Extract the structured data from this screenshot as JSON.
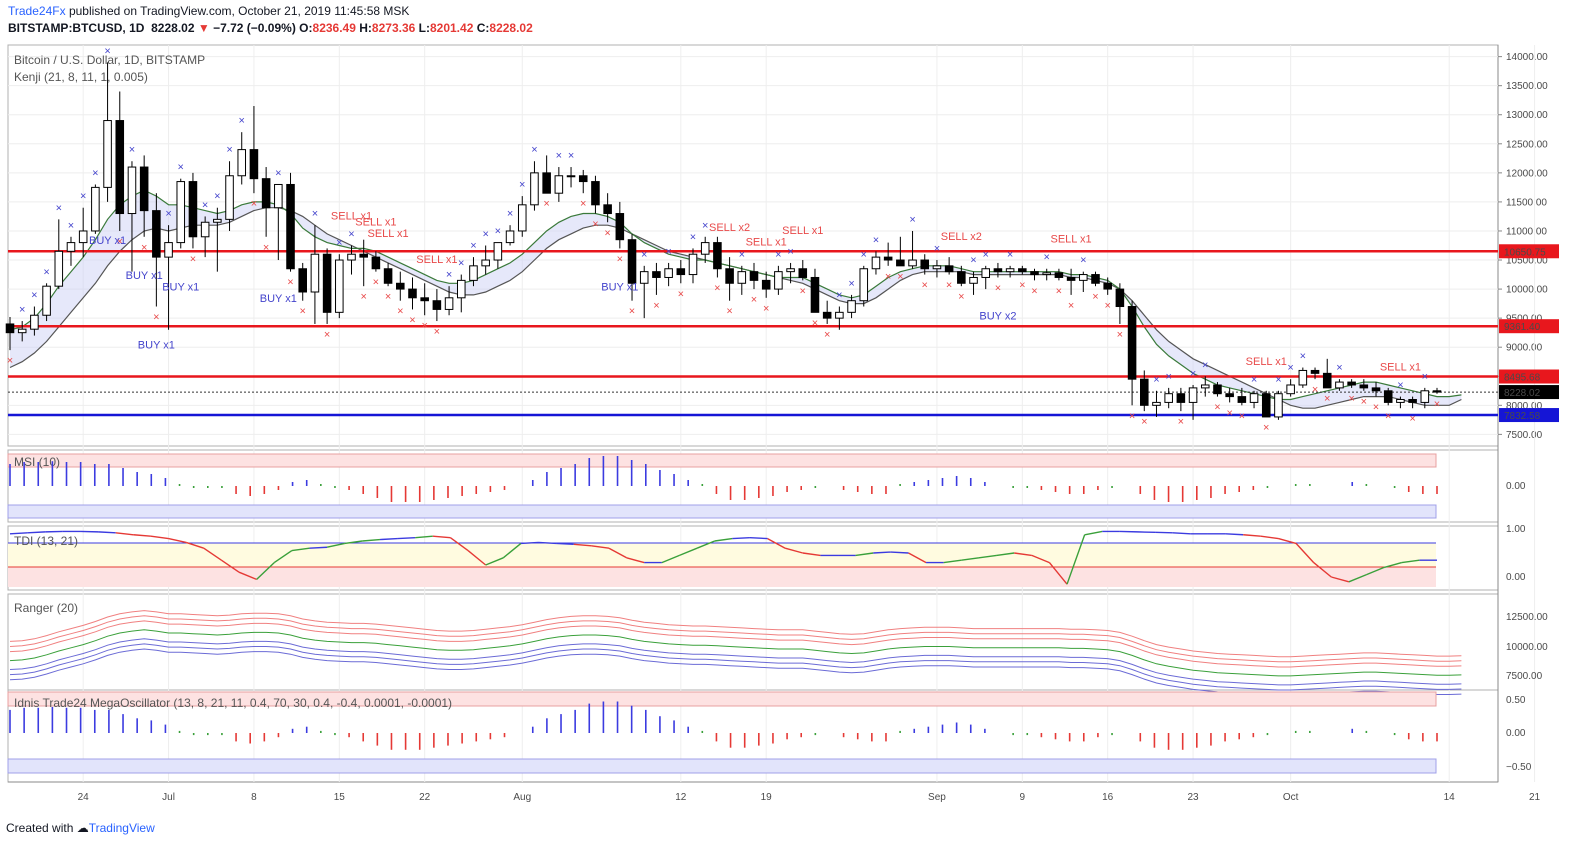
{
  "header": {
    "brand": "Trade24Fx",
    "published": "published on TradingView.com, October 21, 2019 11:45:58 MSK",
    "symbol": "BITSTAMP:BTCUSD, 1D",
    "price": "8228.02",
    "change_arrow": "▼",
    "change": "−7.72 (−0.09%)",
    "o_label": "O:",
    "o_value": "8236.49",
    "h_label": "H:",
    "h_value": "8273.36",
    "l_label": "L:",
    "l_value": "8201.42",
    "c_label": "C:",
    "c_value": "8228.02"
  },
  "footer": {
    "created_with": "Created with",
    "brand": "TradingView"
  },
  "colors": {
    "up": "#ffffff",
    "down": "#000000",
    "hline_red": "#e8171d",
    "hline_blue": "#1515d6",
    "sell": "#e84a4a",
    "buy": "#4444cc",
    "grid": "#eeeeee"
  },
  "chart_data": {
    "type": "candlestick",
    "title": "Bitcoin / U.S. Dollar, 1D, BITSTAMP",
    "indicator": "Kenji (21, 8, 11, 1, 0.005)",
    "ylim": [
      7300,
      14200
    ],
    "y_ticks": [
      "14000.00",
      "13500.00",
      "13000.00",
      "12500.00",
      "12000.00",
      "11500.00",
      "11000.00",
      "10500.00",
      "10000.00",
      "9500.00",
      "9000.00",
      "8500.00",
      "8000.00",
      "7500.00"
    ],
    "x_ticks": [
      "24",
      "Jul",
      "8",
      "15",
      "22",
      "Aug",
      "12",
      "19",
      "Sep",
      "9",
      "16",
      "23",
      "Oct",
      "14",
      "21"
    ],
    "x_tick_days": [
      6,
      13,
      20,
      27,
      34,
      42,
      55,
      62,
      76,
      83,
      90,
      97,
      105,
      118,
      125
    ],
    "horizontal_levels": [
      {
        "value": 10650.75,
        "label": "10650.75",
        "color": "red"
      },
      {
        "value": 9361.4,
        "label": "9361.40",
        "color": "red"
      },
      {
        "value": 8495.68,
        "label": "8495.68",
        "color": "red"
      },
      {
        "value": 7832.58,
        "label": "7832.58",
        "color": "blue"
      }
    ],
    "last_price": {
      "value": 8228.02,
      "label": "8228.02"
    },
    "candles": [
      [
        9400,
        9520,
        8950,
        9250
      ],
      [
        9250,
        9450,
        9100,
        9310
      ],
      [
        9310,
        9700,
        9200,
        9550
      ],
      [
        9550,
        10100,
        9450,
        10050
      ],
      [
        10050,
        11200,
        10000,
        10650
      ],
      [
        10650,
        10900,
        10400,
        10800
      ],
      [
        10800,
        11400,
        10550,
        11000
      ],
      [
        11000,
        11800,
        10950,
        11750
      ],
      [
        11750,
        13900,
        11500,
        12900
      ],
      [
        12900,
        13400,
        11000,
        11300
      ],
      [
        11300,
        12200,
        10300,
        12100
      ],
      [
        12100,
        12300,
        10900,
        11350
      ],
      [
        11350,
        11650,
        9700,
        10550
      ],
      [
        10550,
        11100,
        9300,
        10800
      ],
      [
        10800,
        11900,
        10700,
        11850
      ],
      [
        11850,
        12000,
        10700,
        10900
      ],
      [
        10900,
        11250,
        10550,
        11150
      ],
      [
        11150,
        11400,
        10300,
        11200
      ],
      [
        11200,
        12200,
        11000,
        11950
      ],
      [
        11950,
        12700,
        11800,
        12400
      ],
      [
        12400,
        13150,
        11650,
        11900
      ],
      [
        11900,
        12100,
        10900,
        11400
      ],
      [
        11400,
        11800,
        10500,
        11800
      ],
      [
        11800,
        12000,
        10300,
        10350
      ],
      [
        10350,
        10450,
        9800,
        9950
      ],
      [
        9950,
        11100,
        9400,
        10600
      ],
      [
        10600,
        10700,
        9400,
        9600
      ],
      [
        9600,
        10600,
        9500,
        10500
      ],
      [
        10500,
        10750,
        10250,
        10600
      ],
      [
        10600,
        10850,
        10050,
        10550
      ],
      [
        10550,
        10650,
        10300,
        10350
      ],
      [
        10350,
        10450,
        10050,
        10100
      ],
      [
        10100,
        10300,
        9800,
        10000
      ],
      [
        10000,
        10200,
        9650,
        9850
      ],
      [
        9850,
        10100,
        9550,
        9800
      ],
      [
        9800,
        10000,
        9450,
        9650
      ],
      [
        9650,
        10050,
        9550,
        9850
      ],
      [
        9850,
        10250,
        9600,
        10150
      ],
      [
        10150,
        10550,
        10050,
        10400
      ],
      [
        10400,
        10750,
        10250,
        10500
      ],
      [
        10500,
        10800,
        10350,
        10800
      ],
      [
        10800,
        11100,
        10750,
        11000
      ],
      [
        11000,
        11600,
        10900,
        11450
      ],
      [
        11450,
        12200,
        11350,
        12000
      ],
      [
        12000,
        12300,
        11650,
        11650
      ],
      [
        11650,
        12100,
        11500,
        11950
      ],
      [
        11950,
        12100,
        11750,
        11950
      ],
      [
        11950,
        12050,
        11650,
        11850
      ],
      [
        11850,
        11950,
        11300,
        11450
      ],
      [
        11450,
        11650,
        11150,
        11300
      ],
      [
        11300,
        11500,
        10700,
        10850
      ],
      [
        10850,
        10950,
        9800,
        10100
      ],
      [
        10100,
        10400,
        9500,
        10300
      ],
      [
        10300,
        10450,
        9900,
        10200
      ],
      [
        10200,
        10450,
        10050,
        10350
      ],
      [
        10350,
        10500,
        10100,
        10250
      ],
      [
        10250,
        10700,
        10100,
        10600
      ],
      [
        10600,
        10900,
        10450,
        10800
      ],
      [
        10800,
        10900,
        10200,
        10350
      ],
      [
        10350,
        10550,
        9800,
        10100
      ],
      [
        10100,
        10400,
        9900,
        10300
      ],
      [
        10300,
        10450,
        10000,
        10150
      ],
      [
        10150,
        10300,
        9850,
        10000
      ],
      [
        10000,
        10400,
        9900,
        10300
      ],
      [
        10300,
        10450,
        10100,
        10350
      ],
      [
        10350,
        10500,
        10150,
        10200
      ],
      [
        10200,
        10350,
        9600,
        9600
      ],
      [
        9600,
        9800,
        9400,
        9500
      ],
      [
        9500,
        9700,
        9300,
        9600
      ],
      [
        9600,
        9900,
        9500,
        9800
      ],
      [
        9800,
        10400,
        9700,
        10350
      ],
      [
        10350,
        10650,
        10250,
        10550
      ],
      [
        10550,
        10800,
        10400,
        10500
      ],
      [
        10500,
        10900,
        10400,
        10400
      ],
      [
        10400,
        11000,
        10350,
        10500
      ],
      [
        10500,
        10600,
        10250,
        10350
      ],
      [
        10350,
        10500,
        10200,
        10400
      ],
      [
        10400,
        10550,
        10250,
        10300
      ],
      [
        10300,
        10400,
        10050,
        10100
      ],
      [
        10100,
        10300,
        9900,
        10200
      ],
      [
        10200,
        10400,
        10000,
        10350
      ],
      [
        10350,
        10450,
        10200,
        10300
      ],
      [
        10300,
        10400,
        10200,
        10350
      ],
      [
        10350,
        10400,
        10250,
        10300
      ],
      [
        10300,
        10350,
        10150,
        10250
      ],
      [
        10250,
        10350,
        10150,
        10280
      ],
      [
        10280,
        10350,
        10150,
        10200
      ],
      [
        10200,
        10350,
        9900,
        10150
      ],
      [
        10150,
        10300,
        9950,
        10250
      ],
      [
        10250,
        10300,
        10050,
        10100
      ],
      [
        10100,
        10200,
        9900,
        10000
      ],
      [
        10000,
        10100,
        9400,
        9700
      ],
      [
        9700,
        9800,
        8000,
        8450
      ],
      [
        8450,
        8600,
        7900,
        8000
      ],
      [
        8000,
        8250,
        7800,
        8050
      ],
      [
        8050,
        8300,
        7950,
        8200
      ],
      [
        8200,
        8300,
        7900,
        8050
      ],
      [
        8050,
        8350,
        7750,
        8300
      ],
      [
        8300,
        8500,
        8150,
        8350
      ],
      [
        8350,
        8400,
        8150,
        8200
      ],
      [
        8200,
        8300,
        8050,
        8150
      ],
      [
        8150,
        8300,
        8000,
        8050
      ],
      [
        8050,
        8250,
        7950,
        8200
      ],
      [
        8200,
        8250,
        7800,
        7800
      ],
      [
        7800,
        8250,
        7750,
        8200
      ],
      [
        8200,
        8450,
        8150,
        8350
      ],
      [
        8350,
        8650,
        8300,
        8600
      ],
      [
        8600,
        8650,
        8450,
        8550
      ],
      [
        8550,
        8800,
        8300,
        8300
      ],
      [
        8300,
        8450,
        8250,
        8400
      ],
      [
        8400,
        8450,
        8300,
        8350
      ],
      [
        8350,
        8450,
        8250,
        8300
      ],
      [
        8300,
        8400,
        8150,
        8250
      ],
      [
        8250,
        8300,
        8000,
        8050
      ],
      [
        8050,
        8150,
        7950,
        8100
      ],
      [
        8100,
        8150,
        7950,
        8050
      ],
      [
        8050,
        8300,
        7950,
        8250
      ],
      [
        8250,
        8300,
        8200,
        8228
      ]
    ],
    "band_fast": [
      9300,
      9350,
      9500,
      9750,
      10050,
      10300,
      10550,
      10850,
      11200,
      11450,
      11600,
      11700,
      11600,
      11450,
      11450,
      11400,
      11350,
      11300,
      11350,
      11450,
      11500,
      11500,
      11450,
      11300,
      11050,
      10900,
      10800,
      10750,
      10700,
      10700,
      10650,
      10550,
      10450,
      10350,
      10250,
      10150,
      10100,
      10100,
      10150,
      10250,
      10350,
      10450,
      10600,
      10800,
      11000,
      11150,
      11250,
      11300,
      11300,
      11250,
      11150,
      10950,
      10800,
      10700,
      10600,
      10550,
      10500,
      10500,
      10450,
      10400,
      10350,
      10300,
      10250,
      10200,
      10200,
      10200,
      10100,
      10000,
      9900,
      9850,
      9900,
      10050,
      10200,
      10300,
      10350,
      10400,
      10400,
      10400,
      10350,
      10300,
      10300,
      10300,
      10300,
      10300,
      10300,
      10300,
      10300,
      10250,
      10250,
      10200,
      10150,
      10000,
      9700,
      9350,
      9050,
      8850,
      8700,
      8550,
      8450,
      8350,
      8300,
      8250,
      8200,
      8150,
      8100,
      8100,
      8150,
      8200,
      8250,
      8300,
      8350,
      8400,
      8400,
      8350,
      8300,
      8250,
      8200,
      8150,
      8150,
      8180
    ],
    "band_slow": [
      8650,
      8750,
      8900,
      9100,
      9350,
      9600,
      9850,
      10100,
      10400,
      10650,
      10850,
      11000,
      11050,
      11000,
      11050,
      11100,
      11100,
      11100,
      11150,
      11250,
      11350,
      11400,
      11400,
      11350,
      11250,
      11100,
      10950,
      10850,
      10750,
      10650,
      10550,
      10450,
      10350,
      10250,
      10150,
      10050,
      9950,
      9900,
      9900,
      9950,
      10050,
      10150,
      10300,
      10500,
      10700,
      10850,
      10950,
      11050,
      11100,
      11100,
      11050,
      10950,
      10850,
      10750,
      10650,
      10600,
      10550,
      10500,
      10450,
      10400,
      10350,
      10300,
      10250,
      10200,
      10150,
      10100,
      10000,
      9900,
      9800,
      9750,
      9750,
      9850,
      10000,
      10150,
      10250,
      10300,
      10300,
      10300,
      10300,
      10250,
      10250,
      10250,
      10250,
      10250,
      10250,
      10250,
      10250,
      10200,
      10200,
      10150,
      10100,
      10000,
      9800,
      9550,
      9300,
      9100,
      8950,
      8800,
      8700,
      8600,
      8500,
      8400,
      8300,
      8200,
      8100,
      8000,
      7950,
      7950,
      8000,
      8050,
      8100,
      8150,
      8150,
      8150,
      8100,
      8050,
      8000,
      8000,
      8000,
      8100
    ],
    "signals_text": [
      {
        "day": 14,
        "label": "BUY x1",
        "type": "buy"
      },
      {
        "day": 19,
        "label": "BUY x1",
        "type": "buy"
      },
      {
        "day": 20,
        "label": "BUY x1",
        "type": "buy"
      },
      {
        "day": 24,
        "label": "BUY x1",
        "type": "buy"
      },
      {
        "day": 38,
        "label": "BUY x1",
        "type": "buy"
      },
      {
        "day": 48,
        "label": "SELL x1",
        "type": "sell"
      },
      {
        "day": 51,
        "label": "SELL x1",
        "type": "sell"
      },
      {
        "day": 53,
        "label": "SELL x1",
        "type": "sell"
      },
      {
        "day": 60,
        "label": "SELL x1",
        "type": "sell"
      },
      {
        "day": 84,
        "label": "BUY x1",
        "type": "buy"
      },
      {
        "day": 100,
        "label": "SELL x2",
        "type": "sell"
      },
      {
        "day": 105,
        "label": "SELL x1",
        "type": "sell"
      },
      {
        "day": 110,
        "label": "SELL x1",
        "type": "sell"
      },
      {
        "day": 137,
        "label": "BUY x2",
        "type": "buy"
      },
      {
        "day": 132,
        "label": "SELL x2",
        "type": "sell"
      },
      {
        "day": 148,
        "label": "SELL x1",
        "type": "sell"
      },
      {
        "day": 174,
        "label": "SELL x1",
        "type": "sell"
      },
      {
        "day": 193,
        "label": "SELL x1",
        "type": "sell"
      }
    ],
    "panes": [
      {
        "name": "MSI (10)",
        "y_ticks": [
          "0.00"
        ]
      },
      {
        "name": "TDI (13, 21)",
        "y_ticks": [
          "1.00",
          "0.00"
        ]
      },
      {
        "name": "Ranger (20)",
        "y_ticks": [
          "12500.00",
          "10000.00",
          "7500.00"
        ]
      },
      {
        "name": "Idnis Trade24 MegaOscillator (13, 8, 21, 11, 0.4, 70, 30, 0.4, -0.4, 0.0001, -0.0001)",
        "y_ticks": [
          "0.50",
          "0.00",
          "−0.50"
        ]
      }
    ],
    "msi_values": [
      0.55,
      0.6,
      0.6,
      0.62,
      0.6,
      0.6,
      0.55,
      0.55,
      0.45,
      0.35,
      0.3,
      0.2,
      0.05,
      -0.05,
      -0.05,
      -0.05,
      -0.2,
      -0.25,
      -0.2,
      -0.1,
      0.1,
      0.15,
      0.05,
      -0.05,
      -0.1,
      -0.2,
      -0.3,
      -0.4,
      -0.4,
      -0.4,
      -0.35,
      -0.3,
      -0.25,
      -0.2,
      -0.15,
      -0.1,
      0.0,
      0.15,
      0.35,
      0.45,
      0.55,
      0.7,
      0.75,
      0.75,
      0.65,
      0.55,
      0.4,
      0.3,
      0.15,
      0.05,
      -0.2,
      -0.35,
      -0.35,
      -0.3,
      -0.25,
      -0.15,
      -0.1,
      -0.05,
      0.0,
      -0.1,
      -0.15,
      -0.2,
      -0.2,
      0.05,
      0.1,
      0.15,
      0.2,
      0.25,
      0.2,
      0.1,
      0.0,
      -0.05,
      -0.05,
      -0.1,
      -0.15,
      -0.2,
      -0.2,
      -0.1,
      -0.05,
      0.0,
      -0.2,
      -0.35,
      -0.4,
      -0.4,
      -0.35,
      -0.3,
      -0.2,
      -0.15,
      -0.1,
      -0.05,
      0.0,
      0.05,
      0.05,
      0.0,
      0.0,
      0.1,
      0.05,
      0.0,
      -0.05,
      -0.15,
      -0.2,
      -0.2
    ],
    "tdi_values": [
      0.9,
      0.92,
      0.94,
      0.95,
      0.95,
      0.94,
      0.92,
      0.88,
      0.85,
      0.8,
      0.72,
      0.6,
      0.35,
      0.1,
      -0.05,
      0.3,
      0.55,
      0.6,
      0.62,
      0.7,
      0.75,
      0.78,
      0.8,
      0.82,
      0.85,
      0.82,
      0.55,
      0.25,
      0.4,
      0.7,
      0.72,
      0.7,
      0.68,
      0.65,
      0.6,
      0.4,
      0.3,
      0.3,
      0.45,
      0.6,
      0.75,
      0.8,
      0.82,
      0.8,
      0.6,
      0.5,
      0.45,
      0.45,
      0.45,
      0.5,
      0.52,
      0.5,
      0.3,
      0.3,
      0.35,
      0.4,
      0.45,
      0.5,
      0.45,
      0.3,
      -0.15,
      0.88,
      0.95,
      0.95,
      0.94,
      0.93,
      0.92,
      0.9,
      0.9,
      0.9,
      0.88,
      0.85,
      0.8,
      0.7,
      0.3,
      0.0,
      -0.1,
      0.05,
      0.2,
      0.3,
      0.35,
      0.35
    ]
  }
}
